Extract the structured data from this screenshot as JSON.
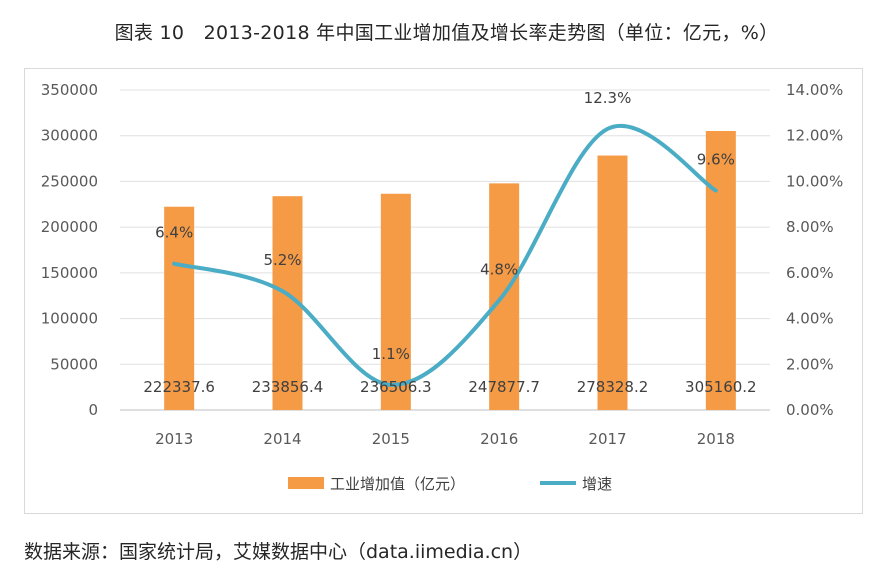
{
  "title": "图表 10　2013-2018 年中国工业增加值及增长率走势图（单位：亿元，%）",
  "source": "数据来源：国家统计局，艾媒数据中心（data.iimedia.cn）",
  "chart_data": {
    "type": "bar+line",
    "categories": [
      "2013",
      "2014",
      "2015",
      "2016",
      "2017",
      "2018"
    ],
    "series": [
      {
        "name": "工业增加值（亿元）",
        "type": "bar",
        "axis": "left",
        "values": [
          222337.6,
          233856.4,
          236506.3,
          247877.7,
          278328.2,
          305160.2
        ],
        "labels": [
          "222337.6",
          "233856.4",
          "236506.3",
          "247877.7",
          "278328.2",
          "305160.2"
        ],
        "color": "#F59A45"
      },
      {
        "name": "增速",
        "type": "line",
        "axis": "right",
        "values": [
          6.4,
          5.2,
          1.1,
          4.8,
          12.3,
          9.6
        ],
        "labels": [
          "6.4%",
          "5.2%",
          "1.1%",
          "4.8%",
          "12.3%",
          "9.6%"
        ],
        "color": "#4BACC6"
      }
    ],
    "y_left": {
      "ylim": [
        0,
        350000
      ],
      "ticks": [
        "0",
        "50000",
        "100000",
        "150000",
        "200000",
        "250000",
        "300000",
        "350000"
      ]
    },
    "y_right": {
      "ylim": [
        0,
        14
      ],
      "ticks": [
        "0.00%",
        "2.00%",
        "4.00%",
        "6.00%",
        "8.00%",
        "10.00%",
        "12.00%",
        "14.00%"
      ]
    },
    "grid": true,
    "legend": "bottom"
  }
}
